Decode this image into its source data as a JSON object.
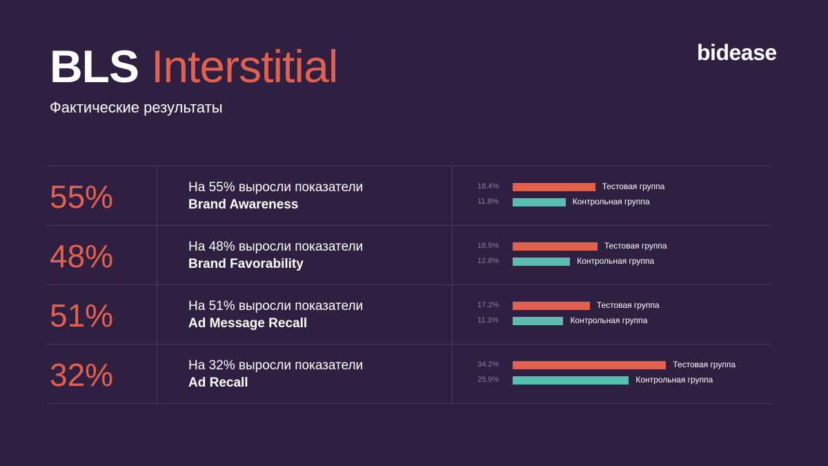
{
  "header": {
    "title_bold": "BLS",
    "title_light": "Interstitial",
    "subtitle": "Фактические результаты",
    "logo": "bidease"
  },
  "colors": {
    "background": "#2f2041",
    "accent": "#e1604e",
    "test_bar": "#e1604e",
    "control_bar": "#5bbdb0"
  },
  "rows": [
    {
      "pct": "55%",
      "line1": "На 55% выросли показатели",
      "line2": "Brand Awareness",
      "test_label": "18.4%",
      "test_name": "Тестовая группа",
      "ctrl_label": "11.8%",
      "ctrl_name": "Контрольная группа"
    },
    {
      "pct": "48%",
      "line1": "На 48% выросли показатели",
      "line2": "Brand Favorability",
      "test_label": "18.9%",
      "test_name": "Тестовая группа",
      "ctrl_label": "12.8%",
      "ctrl_name": "Контрольная группа"
    },
    {
      "pct": "51%",
      "line1": "На 51% выросли показатели",
      "line2": "Ad Message Recall",
      "test_label": "17.2%",
      "test_name": "Тестовая группа",
      "ctrl_label": "11.3%",
      "ctrl_name": "Контрольная группа"
    },
    {
      "pct": "32%",
      "line1": "На 32% выросли показатели",
      "line2": "Ad Recall",
      "test_label": "34.2%",
      "test_name": "Тестовая группа",
      "ctrl_label": "25.9%",
      "ctrl_name": "Контрольная группа"
    }
  ],
  "chart_data": {
    "type": "bar",
    "orientation": "horizontal",
    "categories": [
      "Brand Awareness",
      "Brand Favorability",
      "Ad Message Recall",
      "Ad Recall"
    ],
    "series": [
      {
        "name": "Тестовая группа",
        "values": [
          18.4,
          18.9,
          17.2,
          34.2
        ]
      },
      {
        "name": "Контрольная группа",
        "values": [
          11.8,
          12.8,
          11.3,
          25.9
        ]
      }
    ],
    "uplift": [
      55,
      48,
      51,
      32
    ]
  }
}
